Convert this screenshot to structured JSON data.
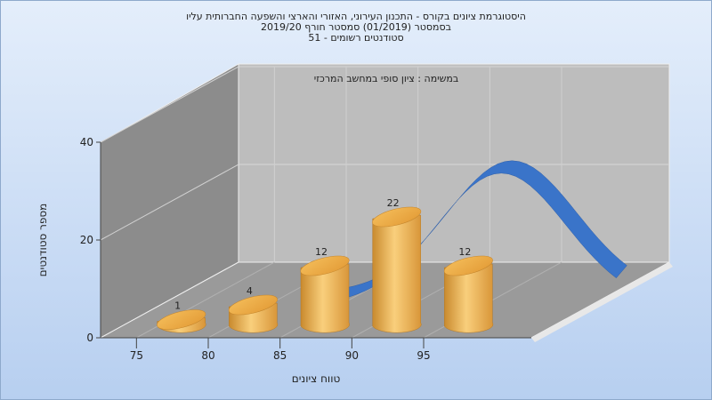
{
  "chart_data": {
    "type": "bar",
    "title_lines": [
      "היסטוגרמת ציונים בקורס - התכנון העירוני, האזורי והארצי והשפעה החברותית עליו",
      "בסמסטר  (01/2019)  סמסטר חורף 2019/20",
      "סטודנטים רשומים - 51"
    ],
    "subtitle": "במשימה : ציון סופי במחשב המרכזי",
    "xlabel": "טווח ציונים",
    "ylabel": "מספר סטודנטים",
    "categories": [
      "75",
      "80",
      "85",
      "90",
      "95"
    ],
    "bars": [
      {
        "x": 77.5,
        "value": 1,
        "label": "1"
      },
      {
        "x": 82.5,
        "value": 4,
        "label": "4"
      },
      {
        "x": 87.5,
        "value": 12,
        "label": "12"
      },
      {
        "x": 92.5,
        "value": 22,
        "label": "22"
      },
      {
        "x": 97.5,
        "value": 12,
        "label": "12"
      }
    ],
    "y_ticks": [
      "0",
      "20",
      "40"
    ],
    "ylim": [
      0,
      40
    ],
    "xlim": [
      72.5,
      102.5
    ],
    "curve": "normal-distribution",
    "grid": true,
    "colors": {
      "bar": "#e8a84a",
      "curve": "#3a74c9",
      "back_wall": "#b9b9b9",
      "side_wall": "#8c8c8c",
      "floor": "#9a9a9a"
    }
  }
}
